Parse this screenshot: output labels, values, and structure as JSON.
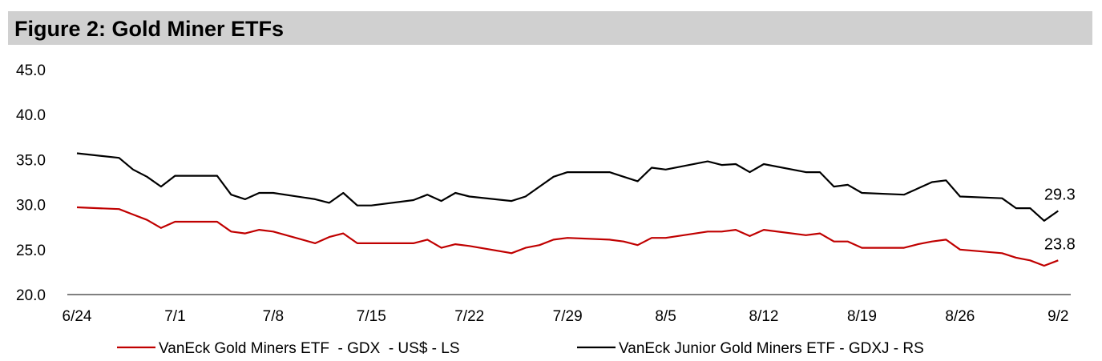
{
  "title": "Figure 2: Gold Miner ETFs",
  "chart_data": {
    "type": "line",
    "title": "Figure 2: Gold Miner ETFs",
    "xlabel": "",
    "ylabel": "",
    "ylim": [
      20,
      45
    ],
    "yticks": [
      "20.0",
      "25.0",
      "30.0",
      "35.0",
      "40.0",
      "45.0"
    ],
    "xticks": [
      "6/24",
      "7/1",
      "7/8",
      "7/15",
      "7/22",
      "7/29",
      "8/5",
      "8/12",
      "8/19",
      "8/26",
      "9/2"
    ],
    "x_start": "2024-06-24",
    "legend_position": "bottom",
    "grid": false,
    "series": [
      {
        "name": "VanEck Gold Miners ETF  - GDX  - US$ - LS",
        "color": "#c00000",
        "end_label": "23.8",
        "points": [
          [
            0,
            29.7
          ],
          [
            3,
            29.5
          ],
          [
            4,
            28.9
          ],
          [
            5,
            28.3
          ],
          [
            6,
            27.4
          ],
          [
            7,
            28.1
          ],
          [
            10,
            28.1
          ],
          [
            11,
            27.0
          ],
          [
            12,
            26.8
          ],
          [
            13,
            27.2
          ],
          [
            14,
            27.0
          ],
          [
            17,
            25.7
          ],
          [
            18,
            26.4
          ],
          [
            19,
            26.8
          ],
          [
            20,
            25.7
          ],
          [
            24,
            25.7
          ],
          [
            25,
            26.1
          ],
          [
            26,
            25.2
          ],
          [
            27,
            25.6
          ],
          [
            28,
            25.4
          ],
          [
            31,
            24.6
          ],
          [
            32,
            25.2
          ],
          [
            33,
            25.5
          ],
          [
            34,
            26.1
          ],
          [
            35,
            26.3
          ],
          [
            38,
            26.1
          ],
          [
            39,
            25.9
          ],
          [
            40,
            25.5
          ],
          [
            41,
            26.3
          ],
          [
            42,
            26.3
          ],
          [
            45,
            27.0
          ],
          [
            46,
            27.0
          ],
          [
            47,
            27.2
          ],
          [
            48,
            26.5
          ],
          [
            49,
            27.2
          ],
          [
            52,
            26.6
          ],
          [
            53,
            26.8
          ],
          [
            54,
            25.9
          ],
          [
            55,
            25.9
          ],
          [
            56,
            25.2
          ],
          [
            59,
            25.2
          ],
          [
            60,
            25.6
          ],
          [
            61,
            25.9
          ],
          [
            62,
            26.1
          ],
          [
            63,
            25.0
          ],
          [
            66,
            24.6
          ],
          [
            67,
            24.1
          ],
          [
            68,
            23.8
          ],
          [
            69,
            23.2
          ],
          [
            70,
            23.8
          ]
        ]
      },
      {
        "name": "VanEck Junior Gold Miners ETF - GDXJ - RS",
        "color": "#000000",
        "end_label": "29.3",
        "points": [
          [
            0,
            35.7
          ],
          [
            3,
            35.2
          ],
          [
            4,
            33.9
          ],
          [
            5,
            33.1
          ],
          [
            6,
            32.0
          ],
          [
            7,
            33.2
          ],
          [
            10,
            33.2
          ],
          [
            11,
            31.1
          ],
          [
            12,
            30.6
          ],
          [
            13,
            31.3
          ],
          [
            14,
            31.3
          ],
          [
            17,
            30.6
          ],
          [
            18,
            30.2
          ],
          [
            19,
            31.3
          ],
          [
            20,
            29.9
          ],
          [
            21,
            29.9
          ],
          [
            24,
            30.5
          ],
          [
            25,
            31.1
          ],
          [
            26,
            30.4
          ],
          [
            27,
            31.3
          ],
          [
            28,
            30.9
          ],
          [
            31,
            30.4
          ],
          [
            32,
            30.9
          ],
          [
            33,
            32.0
          ],
          [
            34,
            33.1
          ],
          [
            35,
            33.6
          ],
          [
            38,
            33.6
          ],
          [
            39,
            33.1
          ],
          [
            40,
            32.6
          ],
          [
            41,
            34.1
          ],
          [
            42,
            33.9
          ],
          [
            45,
            34.8
          ],
          [
            46,
            34.4
          ],
          [
            47,
            34.5
          ],
          [
            48,
            33.6
          ],
          [
            49,
            34.5
          ],
          [
            52,
            33.6
          ],
          [
            53,
            33.6
          ],
          [
            54,
            32.0
          ],
          [
            55,
            32.2
          ],
          [
            56,
            31.3
          ],
          [
            59,
            31.1
          ],
          [
            60,
            31.8
          ],
          [
            61,
            32.5
          ],
          [
            62,
            32.7
          ],
          [
            63,
            30.9
          ],
          [
            66,
            30.7
          ],
          [
            67,
            29.6
          ],
          [
            68,
            29.6
          ],
          [
            69,
            28.2
          ],
          [
            70,
            29.3
          ]
        ]
      }
    ]
  }
}
